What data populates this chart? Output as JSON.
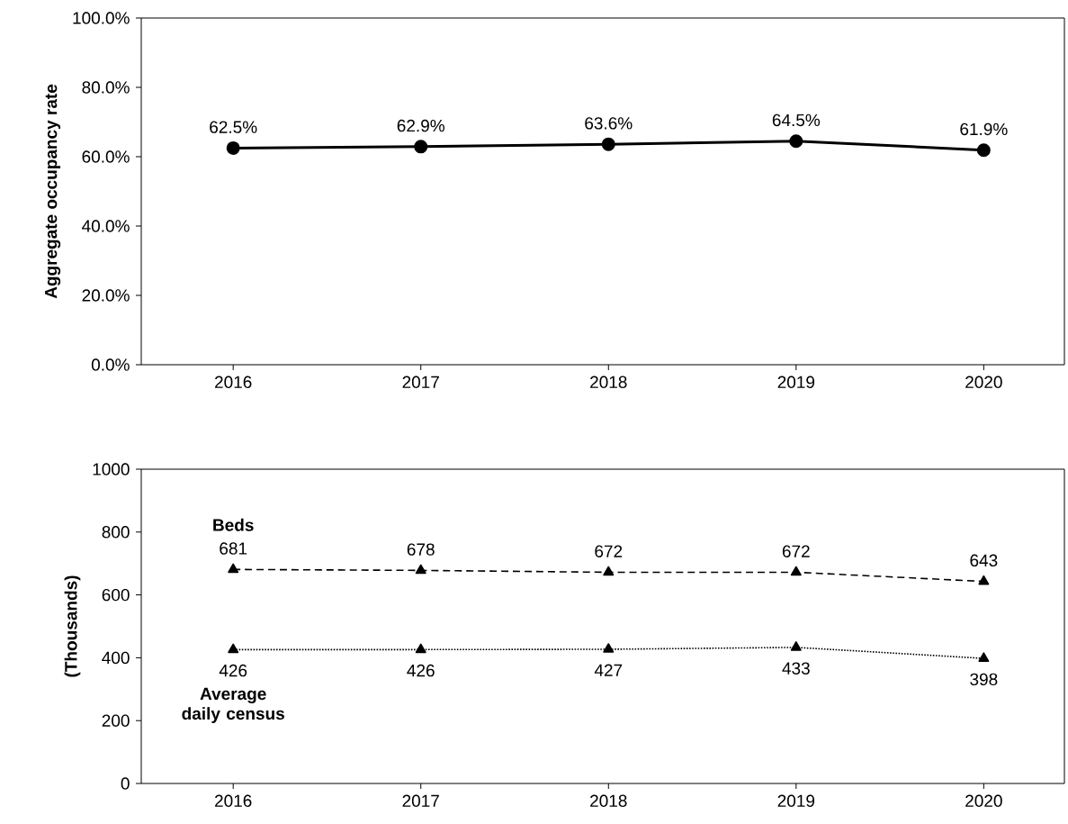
{
  "chart_data": [
    {
      "type": "line",
      "ylabel": "Aggregate occupancy rate",
      "categories": [
        "2016",
        "2017",
        "2018",
        "2019",
        "2020"
      ],
      "values": [
        62.5,
        62.9,
        63.6,
        64.5,
        61.9
      ],
      "value_labels": [
        "62.5%",
        "62.9%",
        "63.6%",
        "64.5%",
        "61.9%"
      ],
      "color": "#000000",
      "marker": "circle",
      "ylim": [
        0,
        100
      ],
      "yticks": [
        {
          "value": 0,
          "label": "0.0%"
        },
        {
          "value": 20,
          "label": "20.0%"
        },
        {
          "value": 40,
          "label": "40.0%"
        },
        {
          "value": 60,
          "label": "60.0%"
        },
        {
          "value": 80,
          "label": "80.0%"
        },
        {
          "value": 100,
          "label": "100.0%"
        }
      ],
      "grid": false
    },
    {
      "type": "line",
      "ylabel": "(Thousands)",
      "categories": [
        "2016",
        "2017",
        "2018",
        "2019",
        "2020"
      ],
      "series": [
        {
          "name": "Beds",
          "color": "#000000",
          "line_style": "dashed",
          "values": [
            681,
            678,
            672,
            672,
            643
          ]
        },
        {
          "name": "Average daily census",
          "color": "#000000",
          "line_style": "dotted",
          "values": [
            426,
            426,
            427,
            433,
            398
          ]
        }
      ],
      "marker": "triangle",
      "data_labels": true,
      "ylim": [
        0,
        1000
      ],
      "yticks": [
        0,
        200,
        400,
        600,
        800,
        1000
      ],
      "grid": false
    }
  ]
}
